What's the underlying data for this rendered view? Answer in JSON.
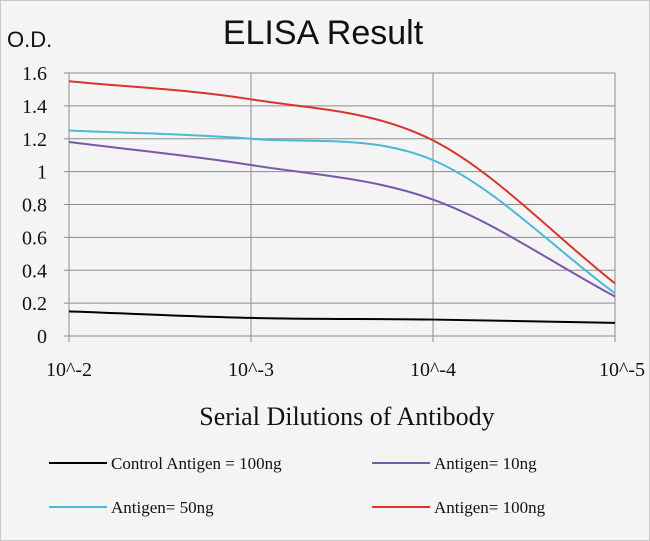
{
  "chart_data": {
    "type": "line",
    "title": "ELISA Result",
    "ylabel": "O.D.",
    "xlabel": "Serial Dilutions  of Antibody",
    "categories": [
      "10^-2",
      "10^-3",
      "10^-4",
      "10^-5"
    ],
    "x_scale": "log",
    "ylim": [
      0,
      1.6
    ],
    "yticks": [
      "0",
      "0.2",
      "0.4",
      "0.6",
      "0.8",
      "1",
      "1.2",
      "1.4",
      "1.6"
    ],
    "grid": true,
    "legend_position": "bottom",
    "series": [
      {
        "name": "Control Antigen = 100ng",
        "color": "#000000",
        "values": [
          0.15,
          0.11,
          0.1,
          0.08
        ]
      },
      {
        "name": "Antigen= 10ng",
        "color": "#7b57a8",
        "values": [
          1.18,
          1.04,
          0.83,
          0.24
        ]
      },
      {
        "name": "Antigen= 50ng",
        "color": "#4bb8d6",
        "values": [
          1.25,
          1.2,
          1.07,
          0.26
        ]
      },
      {
        "name": "Antigen= 100ng",
        "color": "#d9332b",
        "values": [
          1.55,
          1.44,
          1.19,
          0.32
        ]
      }
    ]
  }
}
